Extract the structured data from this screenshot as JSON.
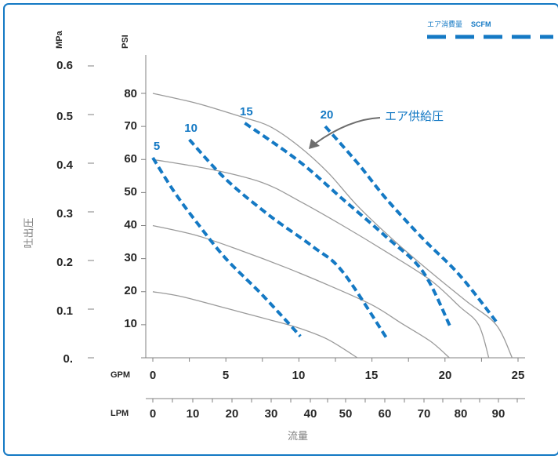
{
  "chart_data": {
    "type": "line",
    "legend": {
      "prefix": "エア消費量",
      "unit": "SCFM",
      "placement": "top-right",
      "line_style": "dashed"
    },
    "y_axis": {
      "label": "吐出圧",
      "mpa_unit": "MPa",
      "psi_unit": "PSI",
      "mpa_ticks": [
        "0.",
        "0.1",
        "0.2",
        "0.3",
        "0.4",
        "0.5",
        "0.6"
      ],
      "psi_ticks": [
        "10",
        "20",
        "30",
        "40",
        "50",
        "60",
        "70",
        "80"
      ],
      "psi_range": [
        0,
        80
      ]
    },
    "x_axis": {
      "label": "流量",
      "gpm_unit": "GPM",
      "lpm_unit": "LPM",
      "gpm_ticks": [
        "0",
        "5",
        "10",
        "15",
        "20",
        "25"
      ],
      "lpm_ticks": [
        "0",
        "10",
        "20",
        "30",
        "40",
        "50",
        "60",
        "70",
        "80",
        "90"
      ],
      "gpm_range": [
        0,
        25
      ]
    },
    "air_supply_annotation": "エア供給圧",
    "colors": {
      "supply_curve": "#9a9a9a",
      "consumption": "#1479c4",
      "frame": "#1479c4"
    },
    "air_supply_curves": [
      {
        "psi": 20,
        "points": [
          [
            0,
            20
          ],
          [
            2,
            18.5
          ],
          [
            5,
            15
          ],
          [
            8,
            11.5
          ],
          [
            10,
            9
          ],
          [
            12,
            5.5
          ],
          [
            14,
            0
          ]
        ]
      },
      {
        "psi": 40,
        "points": [
          [
            0,
            40
          ],
          [
            3,
            37
          ],
          [
            6,
            32.5
          ],
          [
            9,
            27.5
          ],
          [
            12,
            22
          ],
          [
            15,
            16
          ],
          [
            17,
            10.5
          ],
          [
            19,
            5
          ],
          [
            20.3,
            0
          ]
        ]
      },
      {
        "psi": 60,
        "points": [
          [
            0,
            60
          ],
          [
            4,
            57
          ],
          [
            7.5,
            53
          ],
          [
            10,
            47.5
          ],
          [
            13,
            40
          ],
          [
            16,
            32
          ],
          [
            19,
            23.5
          ],
          [
            21,
            15.5
          ],
          [
            22.3,
            10
          ],
          [
            23,
            0
          ]
        ]
      },
      {
        "psi": 80,
        "points": [
          [
            0,
            80
          ],
          [
            3,
            77
          ],
          [
            6,
            73
          ],
          [
            8,
            70
          ],
          [
            10,
            64
          ],
          [
            12,
            56
          ],
          [
            14,
            46
          ],
          [
            16.5,
            35.5
          ],
          [
            19,
            26
          ],
          [
            21.5,
            17
          ],
          [
            23.5,
            10
          ],
          [
            24.6,
            0
          ]
        ]
      }
    ],
    "consumption_series": [
      {
        "name": "5",
        "points": [
          [
            0,
            60.5
          ],
          [
            1.5,
            50
          ],
          [
            3,
            41
          ],
          [
            5,
            30
          ],
          [
            7.5,
            19
          ],
          [
            10.1,
            6.5
          ]
        ]
      },
      {
        "name": "10",
        "points": [
          [
            2.5,
            66
          ],
          [
            5,
            54
          ],
          [
            8,
            43
          ],
          [
            11,
            33.5
          ],
          [
            13,
            26
          ],
          [
            16,
            6
          ]
        ]
      },
      {
        "name": "15",
        "points": [
          [
            6.3,
            71
          ],
          [
            10,
            59.5
          ],
          [
            13,
            48
          ],
          [
            16,
            36.5
          ],
          [
            18.5,
            26
          ],
          [
            20.4,
            9
          ]
        ]
      },
      {
        "name": "20",
        "points": [
          [
            11.8,
            70
          ],
          [
            14,
            59
          ],
          [
            16,
            48
          ],
          [
            18.5,
            36
          ],
          [
            21,
            25
          ],
          [
            23.5,
            11
          ]
        ]
      }
    ]
  }
}
